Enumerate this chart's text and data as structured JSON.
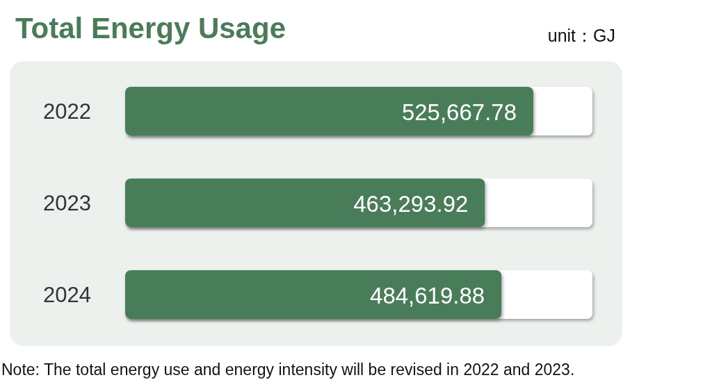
{
  "chart_data": {
    "type": "bar",
    "orientation": "horizontal",
    "title": "Total Energy Usage",
    "subtitle": "unit：GJ",
    "categories": [
      "2022",
      "2023",
      "2024"
    ],
    "values": [
      525667.78,
      463293.92,
      484619.88
    ],
    "value_labels": [
      "525,667.78",
      "463,293.92",
      "484,619.88"
    ],
    "color": "#4a7c59",
    "annotations": [
      "Note: The total energy use and energy intensity will be revised in 2022 and 2023."
    ]
  }
}
